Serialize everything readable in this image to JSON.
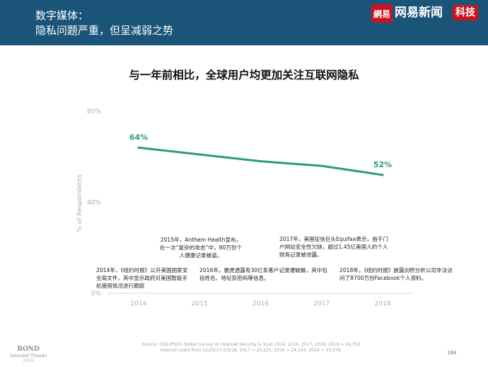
{
  "header": {
    "title_line1": "数字媒体：",
    "title_line2": "隐私问题严重，但呈减弱之势"
  },
  "brand": {
    "logo_text": "網易",
    "name": "网易新闻",
    "tag": "科技",
    "color": "#c8141e"
  },
  "chart_data": {
    "type": "line",
    "title": "与一年前相比，全球用户均更加关注互联网隐私",
    "ylabel": "% of Respondents",
    "xlabel": "",
    "categories": [
      "2014",
      "2015",
      "2016",
      "2017",
      "2018"
    ],
    "series": [
      {
        "values": [
          64,
          61,
          58,
          56,
          52
        ],
        "color": "#2e9e6e"
      }
    ],
    "data_labels": [
      {
        "category": "2014",
        "text": "64%"
      },
      {
        "category": "2018",
        "text": "52%"
      }
    ],
    "ylim": [
      0,
      80
    ],
    "yticks": [
      {
        "value": 0,
        "label": "0%"
      },
      {
        "value": 40,
        "label": "40%"
      },
      {
        "value": 80,
        "label": "80%"
      }
    ],
    "grid": false
  },
  "annotations": {
    "a2015": "2015年，Anthem Health宣布，在一次“复杂的攻击”中，80万份个人健康记录被盗。",
    "a2017": "2017年，美国征信巨头Equifax表示，由于门户网站安全性欠缺，超过1.45亿美国人的个人财务记录被泄露。",
    "a2014": "2014年，《纽约时报》公开美国国家安全局文件，其中显示政府对美国智能手机使用情况进行跟踪",
    "a2016": "2016年，雅虎透露有30亿条客户记录遭破解，其中包括姓名、地址及密码等信息。",
    "a2018": "2018年，《纽约时报》披露剑桥分析公司非法访问了8700万份Facebook个人资料。"
  },
  "footer": {
    "source": "Source: CIGI-IPSOS Global Survey on Internet Security & Trust 2014, 2016, 2017, 2018, 2019 = 24,750 internet users from 12/20/17-3/5/18, 2017 = 24,225, 2016 = 24,143, 2014 = 23,376.",
    "page": "166",
    "bond_line1": "BOND",
    "bond_line2": "Internet Trends",
    "bond_line3": "2019"
  }
}
